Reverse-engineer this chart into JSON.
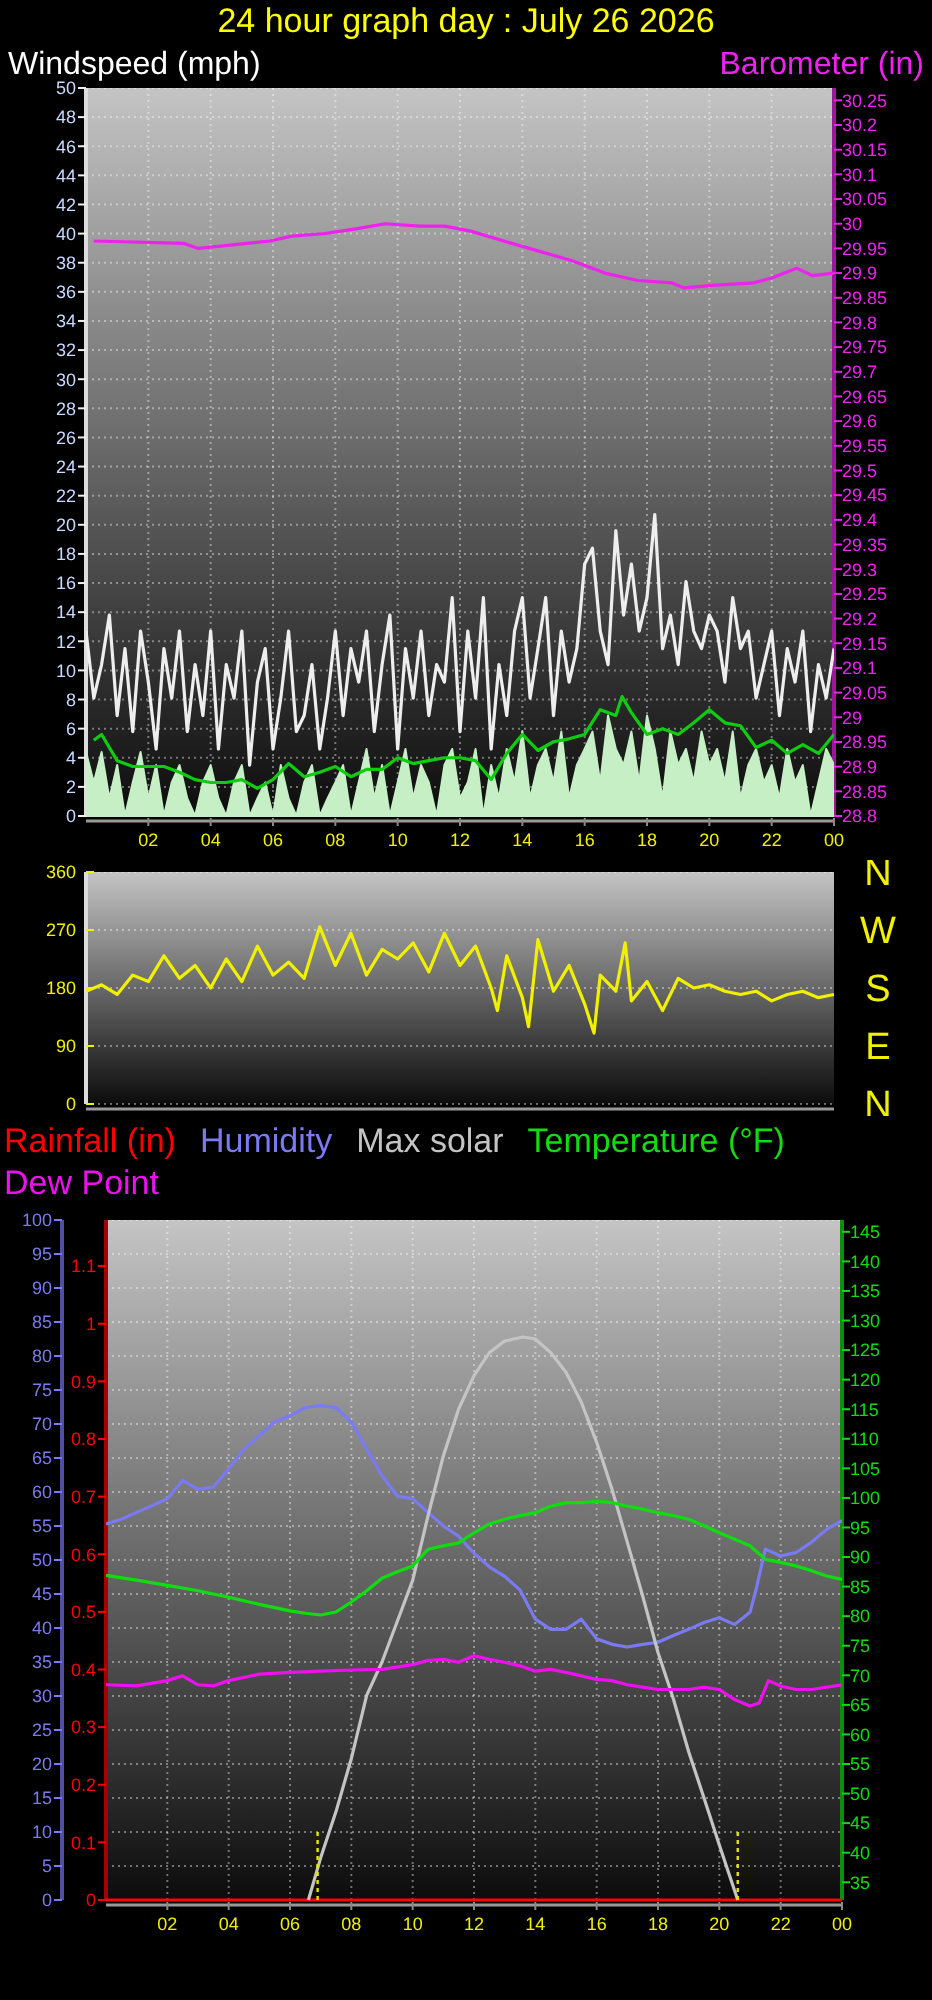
{
  "chart_data": [
    {
      "type": "line",
      "title": "24 hour graph day : July 26 2026",
      "ylabel": "Windspeed (mph)",
      "y2label": "Barometer (in)",
      "x": [
        "2026-07-26T00:00",
        "2026-07-26T00:15",
        "2026-07-26T00:30",
        "2026-07-26T00:45",
        "2026-07-26T01:00",
        "2026-07-26T01:15",
        "2026-07-26T01:30",
        "2026-07-26T01:45",
        "2026-07-26T02:00",
        "2026-07-26T02:15",
        "2026-07-26T02:30",
        "2026-07-26T02:45",
        "2026-07-26T03:00",
        "2026-07-26T03:15",
        "2026-07-26T03:30",
        "2026-07-26T03:45",
        "2026-07-26T04:00",
        "2026-07-26T04:15",
        "2026-07-26T04:30",
        "2026-07-26T04:45",
        "2026-07-26T05:00",
        "2026-07-26T05:15",
        "2026-07-26T05:30",
        "2026-07-26T05:45",
        "2026-07-26T06:00",
        "2026-07-26T06:15",
        "2026-07-26T06:30",
        "2026-07-26T06:45",
        "2026-07-26T07:00",
        "2026-07-26T07:15",
        "2026-07-26T07:30",
        "2026-07-26T07:45",
        "2026-07-26T08:00",
        "2026-07-26T08:15",
        "2026-07-26T08:30",
        "2026-07-26T08:45",
        "2026-07-26T09:00",
        "2026-07-26T09:15",
        "2026-07-26T09:30",
        "2026-07-26T09:45",
        "2026-07-26T10:00",
        "2026-07-26T10:15",
        "2026-07-26T10:30",
        "2026-07-26T10:45",
        "2026-07-26T11:00",
        "2026-07-26T11:15",
        "2026-07-26T11:30",
        "2026-07-26T11:45",
        "2026-07-26T12:00",
        "2026-07-26T12:15",
        "2026-07-26T12:30",
        "2026-07-26T12:45",
        "2026-07-26T13:00",
        "2026-07-26T13:15",
        "2026-07-26T13:30",
        "2026-07-26T13:45",
        "2026-07-26T14:00",
        "2026-07-26T14:15",
        "2026-07-26T14:30",
        "2026-07-26T14:45",
        "2026-07-26T15:00",
        "2026-07-26T15:15",
        "2026-07-26T15:30",
        "2026-07-26T15:45",
        "2026-07-26T16:00",
        "2026-07-26T16:15",
        "2026-07-26T16:30",
        "2026-07-26T16:45",
        "2026-07-26T17:00",
        "2026-07-26T17:15",
        "2026-07-26T17:30",
        "2026-07-26T17:45",
        "2026-07-26T18:00",
        "2026-07-26T18:15",
        "2026-07-26T18:30",
        "2026-07-26T18:45",
        "2026-07-26T19:00",
        "2026-07-26T19:15",
        "2026-07-26T19:30",
        "2026-07-26T19:45",
        "2026-07-26T20:00",
        "2026-07-26T20:15",
        "2026-07-26T20:30",
        "2026-07-26T20:45",
        "2026-07-26T21:00",
        "2026-07-26T21:15",
        "2026-07-26T21:30",
        "2026-07-26T21:45",
        "2026-07-26T22:00",
        "2026-07-26T22:15",
        "2026-07-26T22:30",
        "2026-07-26T22:45",
        "2026-07-26T23:00",
        "2026-07-26T23:15",
        "2026-07-26T23:30",
        "2026-07-26T23:45",
        "2026-07-27T00:00"
      ],
      "series": [
        {
          "color": "#eeeeee",
          "values": [
            12.7,
            8.1,
            10.4,
            13.8,
            6.9,
            11.5,
            5.8,
            12.7,
            9.2,
            4.6,
            11.5,
            8.1,
            12.7,
            5.8,
            10.4,
            6.9,
            12.7,
            4.6,
            10.4,
            8.1,
            12.7,
            3.5,
            9.2,
            11.5,
            4.6,
            8.1,
            12.7,
            5.8,
            6.9,
            10.4,
            4.6,
            8.1,
            12.7,
            6.9,
            11.5,
            9.2,
            12.7,
            5.8,
            10.4,
            13.8,
            4.6,
            11.5,
            8.1,
            12.7,
            6.9,
            10.4,
            9.2,
            15,
            5.8,
            12.7,
            8.1,
            15,
            4.6,
            10.4,
            6.9,
            12.7,
            15,
            8.1,
            11.5,
            15,
            6.9,
            12.7,
            9.2,
            11.5,
            17.3,
            18.4,
            12.7,
            10.4,
            19.6,
            13.8,
            17.3,
            12.7,
            15,
            20.7,
            11.5,
            13.8,
            10.4,
            16.1,
            12.7,
            11.5,
            13.8,
            12.7,
            9.2,
            15,
            11.5,
            12.7,
            8.1,
            10.4,
            12.7,
            6.9,
            11.5,
            9.2,
            12.7,
            5.8,
            10.4,
            8.1,
            11.5
          ]
        },
        {
          "type": "area",
          "color": "#c6efc6",
          "values": [
            4.4,
            2.3,
            4.4,
            1.2,
            3.5,
            0,
            2.3,
            4.4,
            1.2,
            3.5,
            0,
            2.3,
            3.5,
            1.2,
            0,
            2.3,
            3.5,
            1.2,
            0,
            2.3,
            3.5,
            0,
            1.2,
            2.3,
            0,
            3.5,
            1.2,
            0,
            2.3,
            3.5,
            0,
            1.2,
            2.3,
            3.5,
            0,
            2.3,
            4.6,
            1.2,
            3.5,
            0,
            2.3,
            4.6,
            1.2,
            3.5,
            2.3,
            0,
            3.5,
            4.6,
            1.2,
            2.3,
            4.6,
            0,
            3.5,
            1.2,
            4.6,
            2.3,
            5.8,
            1.2,
            3.5,
            4.6,
            2.3,
            5.8,
            1.2,
            3.5,
            4.6,
            5.8,
            2.3,
            6.9,
            4.6,
            3.5,
            5.8,
            2.3,
            6.9,
            4.6,
            1.2,
            5.8,
            3.5,
            4.6,
            2.3,
            5.8,
            3.5,
            4.6,
            2.3,
            5.8,
            1.2,
            3.5,
            4.6,
            2.3,
            3.5,
            1.2,
            4.6,
            2.3,
            3.5,
            0,
            2.3,
            4.6,
            3.5
          ]
        },
        {
          "color": "#10cc10",
          "x": [
            "2026-07-26T00:15",
            "2026-07-26T00:30",
            "2026-07-26T01:00",
            "2026-07-26T01:30",
            "2026-07-26T02:00",
            "2026-07-26T02:30",
            "2026-07-26T03:00",
            "2026-07-26T03:30",
            "2026-07-26T04:00",
            "2026-07-26T04:30",
            "2026-07-26T05:00",
            "2026-07-26T05:30",
            "2026-07-26T06:00",
            "2026-07-26T06:30",
            "2026-07-26T07:00",
            "2026-07-26T07:30",
            "2026-07-26T08:00",
            "2026-07-26T08:30",
            "2026-07-26T09:00",
            "2026-07-26T09:30",
            "2026-07-26T10:00",
            "2026-07-26T10:30",
            "2026-07-26T11:00",
            "2026-07-26T11:30",
            "2026-07-26T12:00",
            "2026-07-26T12:30",
            "2026-07-26T13:00",
            "2026-07-26T13:30",
            "2026-07-26T14:00",
            "2026-07-26T14:30",
            "2026-07-26T15:00",
            "2026-07-26T15:30",
            "2026-07-26T16:00",
            "2026-07-26T16:30",
            "2026-07-26T17:00",
            "2026-07-26T17:12",
            "2026-07-26T17:30",
            "2026-07-26T18:00",
            "2026-07-26T18:30",
            "2026-07-26T19:00",
            "2026-07-26T19:30",
            "2026-07-26T20:00",
            "2026-07-26T20:30",
            "2026-07-26T21:00",
            "2026-07-26T21:30",
            "2026-07-26T22:00",
            "2026-07-26T22:30",
            "2026-07-26T23:00",
            "2026-07-26T23:30",
            "2026-07-27T00:00"
          ],
          "values": [
            5.2,
            5.6,
            3.8,
            3.4,
            3.4,
            3.4,
            3.0,
            2.5,
            2.3,
            2.3,
            2.5,
            1.9,
            2.5,
            3.6,
            2.7,
            3.0,
            3.4,
            2.7,
            3.2,
            3.2,
            4.0,
            3.6,
            3.8,
            4.0,
            4.0,
            3.8,
            2.5,
            4.3,
            5.6,
            4.5,
            5.1,
            5.3,
            5.6,
            7.3,
            6.9,
            8.2,
            7.1,
            5.6,
            6.0,
            5.6,
            6.4,
            7.3,
            6.4,
            6.2,
            4.7,
            5.2,
            4.3,
            4.9,
            4.3,
            5.6
          ]
        },
        {
          "color": "#ee22ee",
          "axis": "y2",
          "x": [
            "2026-07-26T00:15",
            "2026-07-26T03:09",
            "2026-07-26T03:36",
            "2026-07-26T04:24",
            "2026-07-26T05:54",
            "2026-07-26T06:36",
            "2026-07-26T07:39",
            "2026-07-26T08:42",
            "2026-07-26T09:36",
            "2026-07-26T10:42",
            "2026-07-26T11:30",
            "2026-07-26T12:21",
            "2026-07-26T13:24",
            "2026-07-26T14:30",
            "2026-07-26T15:36",
            "2026-07-26T16:39",
            "2026-07-26T17:42",
            "2026-07-26T18:48",
            "2026-07-26T19:12",
            "2026-07-26T20:06",
            "2026-07-26T21:24",
            "2026-07-26T22:00",
            "2026-07-26T22:48",
            "2026-07-26T23:18",
            "2026-07-27T00:00"
          ],
          "values": [
            29.965,
            29.96,
            29.95,
            29.955,
            29.965,
            29.975,
            29.98,
            29.99,
            30.0,
            29.995,
            29.995,
            29.985,
            29.965,
            29.945,
            29.925,
            29.9,
            29.885,
            29.88,
            29.87,
            29.875,
            29.88,
            29.89,
            29.91,
            29.895,
            29.9
          ]
        }
      ],
      "xlim": [
        "2026-07-26T00:00",
        "2026-07-27T00:00"
      ],
      "xticks": [
        {
          "value": "2026-07-26T02:00",
          "label": "02"
        },
        {
          "value": "2026-07-26T04:00",
          "label": "04"
        },
        {
          "value": "2026-07-26T06:00",
          "label": "06"
        },
        {
          "value": "2026-07-26T08:00",
          "label": "08"
        },
        {
          "value": "2026-07-26T10:00",
          "label": "10"
        },
        {
          "value": "2026-07-26T12:00",
          "label": "12"
        },
        {
          "value": "2026-07-26T14:00",
          "label": "14"
        },
        {
          "value": "2026-07-26T16:00",
          "label": "16"
        },
        {
          "value": "2026-07-26T18:00",
          "label": "18"
        },
        {
          "value": "2026-07-26T20:00",
          "label": "20"
        },
        {
          "value": "2026-07-26T22:00",
          "label": "22"
        },
        {
          "value": "2026-07-27T00:00",
          "label": "00"
        }
      ],
      "ylim": [
        0,
        50
      ],
      "yticks": [
        0,
        2,
        4,
        6,
        8,
        10,
        12,
        14,
        16,
        18,
        20,
        22,
        24,
        26,
        28,
        30,
        32,
        34,
        36,
        38,
        40,
        42,
        44,
        46,
        48,
        50
      ],
      "y2lim": [
        28.8,
        30.275
      ],
      "y2ticks": [
        28.8,
        28.85,
        28.9,
        28.95,
        29,
        29.05,
        29.1,
        29.15,
        29.2,
        29.25,
        29.3,
        29.35,
        29.4,
        29.45,
        29.5,
        29.55,
        29.6,
        29.65,
        29.7,
        29.75,
        29.8,
        29.85,
        29.9,
        29.95,
        30,
        30.05,
        30.1,
        30.15,
        30.2,
        30.25
      ],
      "grid": true
    },
    {
      "type": "line",
      "xlim": [
        "2026-07-26T00:00",
        "2026-07-27T00:00"
      ],
      "tick_labels": "y",
      "series": [
        {
          "color": "#f0f000",
          "x": [
            "2026-07-26T00:00",
            "2026-07-26T00:30",
            "2026-07-26T01:00",
            "2026-07-26T01:30",
            "2026-07-26T02:00",
            "2026-07-26T02:30",
            "2026-07-26T03:00",
            "2026-07-26T03:30",
            "2026-07-26T04:00",
            "2026-07-26T04:30",
            "2026-07-26T05:00",
            "2026-07-26T05:30",
            "2026-07-26T06:00",
            "2026-07-26T06:30",
            "2026-07-26T07:00",
            "2026-07-26T07:30",
            "2026-07-26T08:00",
            "2026-07-26T08:30",
            "2026-07-26T09:00",
            "2026-07-26T09:30",
            "2026-07-26T10:00",
            "2026-07-26T10:30",
            "2026-07-26T11:00",
            "2026-07-26T11:30",
            "2026-07-26T12:00",
            "2026-07-26T12:30",
            "2026-07-26T13:00",
            "2026-07-26T13:12",
            "2026-07-26T13:30",
            "2026-07-26T14:00",
            "2026-07-26T14:12",
            "2026-07-26T14:30",
            "2026-07-26T15:00",
            "2026-07-26T15:30",
            "2026-07-26T16:00",
            "2026-07-26T16:18",
            "2026-07-26T16:30",
            "2026-07-26T17:00",
            "2026-07-26T17:18",
            "2026-07-26T17:30",
            "2026-07-26T18:00",
            "2026-07-26T18:30",
            "2026-07-26T19:00",
            "2026-07-26T19:30",
            "2026-07-26T20:00",
            "2026-07-26T20:30",
            "2026-07-26T21:00",
            "2026-07-26T21:30",
            "2026-07-26T22:00",
            "2026-07-26T22:30",
            "2026-07-26T23:00",
            "2026-07-26T23:30",
            "2026-07-27T00:00"
          ],
          "values": [
            175,
            185,
            170,
            200,
            190,
            230,
            195,
            215,
            180,
            225,
            190,
            245,
            200,
            220,
            195,
            275,
            215,
            265,
            200,
            240,
            225,
            250,
            205,
            265,
            215,
            245,
            180,
            145,
            230,
            165,
            120,
            255,
            175,
            215,
            155,
            110,
            200,
            175,
            250,
            160,
            190,
            145,
            195,
            180,
            185,
            175,
            170,
            175,
            160,
            170,
            175,
            165,
            170
          ]
        }
      ],
      "ylim": [
        0,
        360
      ],
      "yticks": [
        0,
        90,
        180,
        270,
        360
      ],
      "annotations": [
        "N",
        "W",
        "S",
        "E",
        "N"
      ],
      "grid": "y"
    },
    {
      "type": "line",
      "legend": "top",
      "series": [
        {
          "name": "Rainfall (in)",
          "color": "#ff0000",
          "axis": "y3",
          "x": [
            "2026-07-26T00:00",
            "2026-07-27T00:00"
          ],
          "values": [
            0,
            0
          ]
        },
        {
          "name": "Humidity",
          "color": "#7a7af2",
          "x": [
            "2026-07-26T00:00",
            "2026-07-26T00:30",
            "2026-07-26T01:00",
            "2026-07-26T01:30",
            "2026-07-26T02:00",
            "2026-07-26T02:30",
            "2026-07-26T03:00",
            "2026-07-26T03:30",
            "2026-07-26T04:00",
            "2026-07-26T04:30",
            "2026-07-26T05:00",
            "2026-07-26T05:30",
            "2026-07-26T06:00",
            "2026-07-26T06:30",
            "2026-07-26T07:00",
            "2026-07-26T07:30",
            "2026-07-26T08:00",
            "2026-07-26T08:30",
            "2026-07-26T09:00",
            "2026-07-26T09:30",
            "2026-07-26T10:00",
            "2026-07-26T10:30",
            "2026-07-26T11:00",
            "2026-07-26T11:30",
            "2026-07-26T12:00",
            "2026-07-26T12:30",
            "2026-07-26T13:00",
            "2026-07-26T13:30",
            "2026-07-26T14:00",
            "2026-07-26T14:30",
            "2026-07-26T15:00",
            "2026-07-26T15:30",
            "2026-07-26T16:00",
            "2026-07-26T16:30",
            "2026-07-26T17:00",
            "2026-07-26T17:30",
            "2026-07-26T18:00",
            "2026-07-26T18:30",
            "2026-07-26T19:00",
            "2026-07-26T19:30",
            "2026-07-26T20:00",
            "2026-07-26T20:30",
            "2026-07-26T21:00",
            "2026-07-26T21:12",
            "2026-07-26T21:30",
            "2026-07-26T22:00",
            "2026-07-26T22:30",
            "2026-07-26T23:00",
            "2026-07-26T23:30",
            "2026-07-27T00:00"
          ],
          "values": [
            55.3,
            56,
            57,
            58,
            59,
            61.7,
            60.4,
            60.7,
            63.4,
            66.3,
            68.3,
            70.3,
            71.2,
            72.4,
            72.7,
            72.4,
            70.3,
            66.3,
            62.4,
            59.4,
            59,
            57,
            55,
            53.5,
            51,
            49,
            47.6,
            45.6,
            41.3,
            39.8,
            39.8,
            41.3,
            38.4,
            37.6,
            37.2,
            37.6,
            37.9,
            38.9,
            39.8,
            40.8,
            41.5,
            40.5,
            42.3,
            45.7,
            51.6,
            50.6,
            51.1,
            52.6,
            54.5,
            55.8
          ]
        },
        {
          "name": "Max solar",
          "color": "#c4c4c4",
          "x": [
            "2026-07-26T06:36",
            "2026-07-26T07:00",
            "2026-07-26T07:30",
            "2026-07-26T08:00",
            "2026-07-26T08:30",
            "2026-07-26T09:00",
            "2026-07-26T09:30",
            "2026-07-26T10:00",
            "2026-07-26T10:30",
            "2026-07-26T11:00",
            "2026-07-26T11:30",
            "2026-07-26T12:00",
            "2026-07-26T12:30",
            "2026-07-26T13:00",
            "2026-07-26T13:36",
            "2026-07-26T14:00",
            "2026-07-26T14:30",
            "2026-07-26T15:00",
            "2026-07-26T15:30",
            "2026-07-26T16:00",
            "2026-07-26T16:30",
            "2026-07-26T17:00",
            "2026-07-26T17:30",
            "2026-07-26T18:00",
            "2026-07-26T18:30",
            "2026-07-26T19:00",
            "2026-07-26T19:30",
            "2026-07-26T20:00",
            "2026-07-26T20:36"
          ],
          "values": [
            0,
            6.2,
            13,
            20.8,
            30.1,
            35,
            41,
            47,
            56.5,
            65.3,
            72.2,
            77.1,
            80.5,
            82.2,
            82.8,
            82.5,
            80.5,
            77.6,
            73.2,
            67.3,
            60.4,
            52.6,
            44.7,
            36.4,
            29.6,
            21.8,
            15,
            8.1,
            0
          ]
        },
        {
          "name": "Temperature (°F)",
          "color": "#10dd10",
          "axis": "y2",
          "x": [
            "2026-07-26T00:00",
            "2026-07-26T01:00",
            "2026-07-26T02:00",
            "2026-07-26T03:00",
            "2026-07-26T04:00",
            "2026-07-26T05:00",
            "2026-07-26T06:00",
            "2026-07-26T06:30",
            "2026-07-26T07:00",
            "2026-07-26T07:30",
            "2026-07-26T08:00",
            "2026-07-26T08:30",
            "2026-07-26T09:00",
            "2026-07-26T09:30",
            "2026-07-26T10:00",
            "2026-07-26T10:30",
            "2026-07-26T11:00",
            "2026-07-26T11:30",
            "2026-07-26T12:00",
            "2026-07-26T12:30",
            "2026-07-26T13:00",
            "2026-07-26T13:30",
            "2026-07-26T14:00",
            "2026-07-26T14:30",
            "2026-07-26T15:00",
            "2026-07-26T15:30",
            "2026-07-26T16:00",
            "2026-07-26T16:30",
            "2026-07-26T17:00",
            "2026-07-26T17:30",
            "2026-07-26T18:00",
            "2026-07-26T18:30",
            "2026-07-26T19:00",
            "2026-07-26T19:30",
            "2026-07-26T20:00",
            "2026-07-26T20:30",
            "2026-07-26T21:00",
            "2026-07-26T21:30",
            "2026-07-26T22:00",
            "2026-07-26T22:30",
            "2026-07-26T23:00",
            "2026-07-26T23:30",
            "2026-07-27T00:00"
          ],
          "values": [
            86.9,
            86.1,
            85.2,
            84.3,
            83.2,
            82,
            80.9,
            80.5,
            80.2,
            80.7,
            82.4,
            84.3,
            86.4,
            87.5,
            88.5,
            91.3,
            91.9,
            92.4,
            94.1,
            95.6,
            96.4,
            97,
            97.5,
            98.6,
            99.2,
            99.2,
            99.4,
            99.2,
            98.6,
            98.1,
            97.5,
            97,
            96.4,
            95.3,
            94.1,
            93,
            91.9,
            89.6,
            89.1,
            88.5,
            87.7,
            86.8,
            86.2
          ]
        },
        {
          "name": "Dew Point",
          "color": "#ee10ee",
          "axis": "y2",
          "x": [
            "2026-07-26T00:00",
            "2026-07-26T01:00",
            "2026-07-26T02:00",
            "2026-07-26T02:30",
            "2026-07-26T03:00",
            "2026-07-26T03:30",
            "2026-07-26T04:00",
            "2026-07-26T05:00",
            "2026-07-26T06:00",
            "2026-07-26T07:00",
            "2026-07-26T08:00",
            "2026-07-26T09:00",
            "2026-07-26T10:00",
            "2026-07-26T10:30",
            "2026-07-26T11:00",
            "2026-07-26T11:30",
            "2026-07-26T12:00",
            "2026-07-26T12:30",
            "2026-07-26T13:00",
            "2026-07-26T13:30",
            "2026-07-26T14:00",
            "2026-07-26T14:30",
            "2026-07-26T15:00",
            "2026-07-26T15:30",
            "2026-07-26T16:00",
            "2026-07-26T16:30",
            "2026-07-26T17:00",
            "2026-07-26T17:30",
            "2026-07-26T18:00",
            "2026-07-26T18:30",
            "2026-07-26T19:00",
            "2026-07-26T19:30",
            "2026-07-26T20:00",
            "2026-07-26T20:30",
            "2026-07-26T21:00",
            "2026-07-26T21:18",
            "2026-07-26T21:36",
            "2026-07-26T22:00",
            "2026-07-26T22:30",
            "2026-07-26T23:00",
            "2026-07-27T00:00"
          ],
          "values": [
            68.4,
            68.2,
            69.1,
            69.9,
            68.4,
            68.2,
            69.1,
            70.2,
            70.5,
            70.7,
            70.9,
            71,
            71.8,
            72.5,
            72.7,
            72.2,
            73.3,
            72.7,
            72.2,
            71.6,
            70.7,
            71,
            70.5,
            69.9,
            69.3,
            69.1,
            68.4,
            68,
            67.6,
            67.6,
            67.6,
            68,
            67.6,
            65.9,
            64.8,
            65.3,
            69.1,
            68.2,
            67.6,
            67.6,
            68.4
          ]
        }
      ],
      "xlim": [
        "2026-07-26T00:00",
        "2026-07-27T00:00"
      ],
      "xticks": [
        {
          "value": "2026-07-26T02:00",
          "label": "02"
        },
        {
          "value": "2026-07-26T04:00",
          "label": "04"
        },
        {
          "value": "2026-07-26T06:00",
          "label": "06"
        },
        {
          "value": "2026-07-26T08:00",
          "label": "08"
        },
        {
          "value": "2026-07-26T10:00",
          "label": "10"
        },
        {
          "value": "2026-07-26T12:00",
          "label": "12"
        },
        {
          "value": "2026-07-26T14:00",
          "label": "14"
        },
        {
          "value": "2026-07-26T16:00",
          "label": "16"
        },
        {
          "value": "2026-07-26T18:00",
          "label": "18"
        },
        {
          "value": "2026-07-26T20:00",
          "label": "20"
        },
        {
          "value": "2026-07-26T22:00",
          "label": "22"
        },
        {
          "value": "2026-07-27T00:00",
          "label": "00"
        }
      ],
      "ylim": [
        0,
        100
      ],
      "yticks": [
        0,
        5,
        10,
        15,
        20,
        25,
        30,
        35,
        40,
        45,
        50,
        55,
        60,
        65,
        70,
        75,
        80,
        85,
        90,
        95,
        100
      ],
      "y2lim": [
        32,
        147
      ],
      "y2ticks": [
        35,
        40,
        45,
        50,
        55,
        60,
        65,
        70,
        75,
        80,
        85,
        90,
        95,
        100,
        105,
        110,
        115,
        120,
        125,
        130,
        135,
        140,
        145
      ],
      "y3lim": [
        0,
        1.18
      ],
      "y3ticks": [
        0,
        0.1,
        0.2,
        0.3,
        0.4,
        0.5,
        0.6,
        0.7,
        0.8,
        0.9,
        1,
        1.1
      ],
      "ref_lines": [
        {
          "axis": "x",
          "value": "2026-07-26T06:54",
          "color": "#e8e800",
          "line_style": "dotted"
        },
        {
          "axis": "x",
          "value": "2026-07-26T20:36",
          "color": "#e8e800",
          "line_style": "dotted"
        }
      ],
      "grid": true
    }
  ]
}
